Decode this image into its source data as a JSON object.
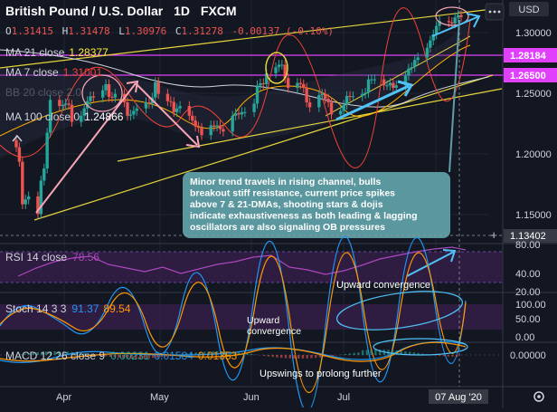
{
  "header": {
    "title": "British Pound / U.S. Dollar",
    "interval": "1D",
    "source": "FXCM",
    "currency": "USD",
    "ohlc": {
      "o_label": "O",
      "o": "1.31415",
      "h_label": "H",
      "h": "1.31478",
      "l_label": "L",
      "l": "1.30976",
      "c_label": "C",
      "c": "1.31278",
      "change": "-0.00137 (-0.10%)"
    }
  },
  "indicators": {
    "ma21": {
      "label": "MA 21 close",
      "value": "1.28377",
      "color": "#ffeb3b"
    },
    "ma7": {
      "label": "MA 7 close",
      "value": "1.31001",
      "color": "#f44336"
    },
    "bb": {
      "label": "BB 20 close 2.0",
      "value": ""
    },
    "ma100": {
      "label": "MA 100 close 0",
      "value": "1.24866",
      "color": "#ffffff"
    }
  },
  "price_axis": {
    "ticks": [
      "1.30000",
      "1.25000",
      "1.20000",
      "1.15000"
    ],
    "level_labels": [
      "1.28184",
      "1.26500"
    ],
    "crosshair_label": "1.13402",
    "level_color": "#e040fb"
  },
  "time_axis": {
    "ticks": [
      "Apr",
      "May",
      "Jun",
      "Jul"
    ],
    "current": "07 Aug '20"
  },
  "annotation": {
    "text_lines": [
      "Minor trend travels in rising channel, bulls",
      "breakout stiff resistance, current price spikes",
      "above 7 & 21-DMAs, shooting stars & dojis",
      "indicate exhaustiveness as both leading & lagging",
      "oscillators are also signaling OB pressures"
    ]
  },
  "rsi": {
    "label": "RSI 14 close",
    "value": "78.56",
    "ticks": [
      "80.00",
      "40.00",
      "20.00"
    ],
    "note": "Upward convergence"
  },
  "stoch": {
    "label": "Stoch 14 3 3",
    "k": "91.37",
    "d": "89.54",
    "ticks": [
      "100.00",
      "50.00",
      "0.00"
    ],
    "note_lines": [
      "Upward",
      "convergence"
    ]
  },
  "macd": {
    "label": "MACD 12 26 close 9",
    "hist": "0.00231",
    "macd": "0.01584",
    "signal": "0.01353",
    "ticks": [
      "0.00000"
    ],
    "note": "Upswings to prolong further"
  },
  "colors": {
    "background": "#131722",
    "up": "#26a69a",
    "down": "#ef5350",
    "channel": "#e5d43c",
    "annotation_box": "#5f9ea7",
    "arrow": "#4fc3f7",
    "pink_arrow": "#f8a5b5",
    "oscillator_band": "#3b1f4f"
  },
  "chart_data": {
    "type": "candlestick",
    "title": "British Pound / U.S. Dollar",
    "x_range": [
      "2020-03-16",
      "2020-08-07"
    ],
    "y_range": [
      1.135,
      1.33
    ],
    "start_date": "2020-03-16",
    "x": [
      "2020-03-16",
      "2020-03-17",
      "2020-03-18",
      "2020-03-19",
      "2020-03-20",
      "2020-03-23",
      "2020-03-24",
      "2020-03-25",
      "2020-03-26",
      "2020-03-27",
      "2020-03-30",
      "2020-03-31",
      "2020-04-01",
      "2020-04-02",
      "2020-04-03",
      "2020-04-06",
      "2020-04-07",
      "2020-04-08",
      "2020-04-09",
      "2020-04-10",
      "2020-04-13",
      "2020-04-14",
      "2020-04-15",
      "2020-04-16",
      "2020-04-17",
      "2020-04-20",
      "2020-04-21",
      "2020-04-22",
      "2020-04-23",
      "2020-04-24",
      "2020-04-27",
      "2020-04-28",
      "2020-04-29",
      "2020-04-30",
      "2020-05-01",
      "2020-05-04",
      "2020-05-05",
      "2020-05-06",
      "2020-05-07",
      "2020-05-08",
      "2020-05-11",
      "2020-05-12",
      "2020-05-13",
      "2020-05-14",
      "2020-05-15",
      "2020-05-18",
      "2020-05-19",
      "2020-05-20",
      "2020-05-21",
      "2020-05-22",
      "2020-05-25",
      "2020-05-26",
      "2020-05-27",
      "2020-05-28",
      "2020-05-29",
      "2020-06-01",
      "2020-06-02",
      "2020-06-03",
      "2020-06-04",
      "2020-06-05",
      "2020-06-08",
      "2020-06-09",
      "2020-06-10",
      "2020-06-11",
      "2020-06-12",
      "2020-06-15",
      "2020-06-16",
      "2020-06-17",
      "2020-06-18",
      "2020-06-19",
      "2020-06-22",
      "2020-06-23",
      "2020-06-24",
      "2020-06-25",
      "2020-06-26",
      "2020-06-29",
      "2020-06-30",
      "2020-07-01",
      "2020-07-02",
      "2020-07-03",
      "2020-07-06",
      "2020-07-07",
      "2020-07-08",
      "2020-07-09",
      "2020-07-10",
      "2020-07-13",
      "2020-07-14",
      "2020-07-15",
      "2020-07-16",
      "2020-07-17",
      "2020-07-20",
      "2020-07-21",
      "2020-07-22",
      "2020-07-23",
      "2020-07-24",
      "2020-07-27",
      "2020-07-28",
      "2020-07-29",
      "2020-07-30",
      "2020-07-31",
      "2020-08-03",
      "2020-08-04",
      "2020-08-05",
      "2020-08-06",
      "2020-08-07"
    ],
    "close": [
      1.2055,
      1.1935,
      1.1585,
      1.1625,
      1.165,
      1.1505,
      1.178,
      1.188,
      1.2175,
      1.2445,
      1.2395,
      1.2405,
      1.2415,
      1.2405,
      1.2265,
      1.2315,
      1.2375,
      1.2435,
      1.2475,
      1.2465,
      1.2525,
      1.2575,
      1.247,
      1.2465,
      1.2495,
      1.2425,
      1.2315,
      1.2325,
      1.2355,
      1.2375,
      1.2425,
      1.2415,
      1.2465,
      1.2592,
      1.2495,
      1.2435,
      1.2428,
      1.2345,
      1.2375,
      1.2395,
      1.2315,
      1.2275,
      1.2225,
      1.2215,
      1.2155,
      1.2235,
      1.2225,
      1.2235,
      1.2205,
      1.2185,
      1.2315,
      1.2335,
      1.2325,
      1.2345,
      1.2345,
      1.2415,
      1.2565,
      1.2582,
      1.2575,
      1.2665,
      1.2715,
      1.2735,
      1.2735,
      1.2625,
      1.2545,
      1.2585,
      1.2575,
      1.2545,
      1.2425,
      1.2385,
      1.2485,
      1.2495,
      1.2455,
      1.2425,
      1.2325,
      1.2355,
      1.2405,
      1.2478,
      1.2475,
      1.2475,
      1.2495,
      1.2505,
      1.2615,
      1.2615,
      1.2615,
      1.2565,
      1.2565,
      1.2585,
      1.2545,
      1.2565,
      1.2645,
      1.2705,
      1.2715,
      1.2775,
      1.2795,
      1.2875,
      1.2935,
      1.2985,
      1.3055,
      1.3095,
      1.3085,
      1.3075,
      1.3125,
      1.3145,
      1.3128
    ]
  }
}
